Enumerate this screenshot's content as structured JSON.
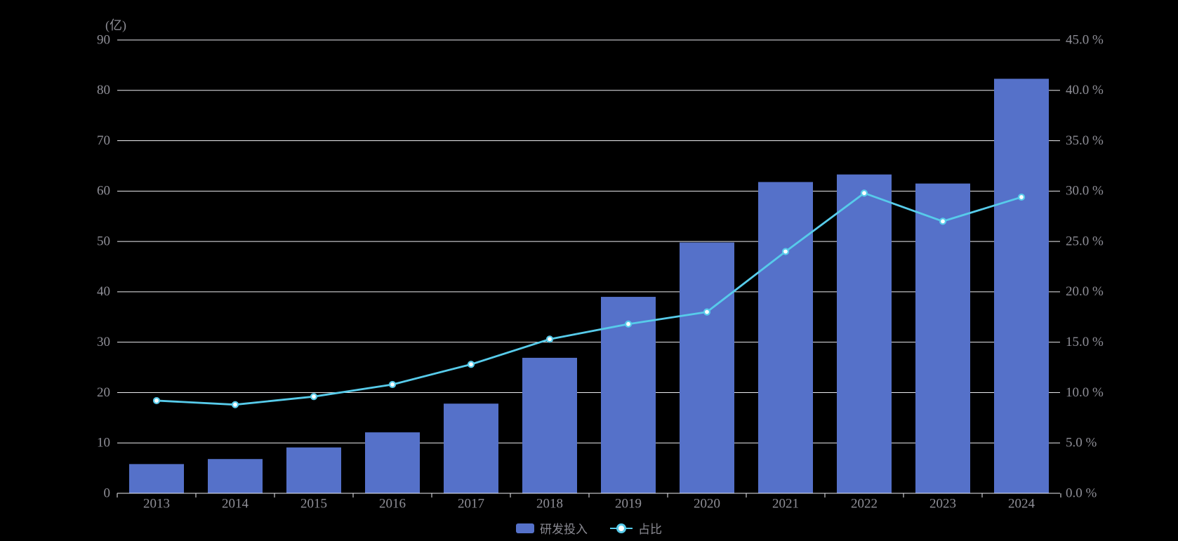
{
  "unit_label": "(亿)",
  "legend": {
    "items": [
      {
        "label": "研发投入",
        "marker": "bar-swatch",
        "color": "#5571C9"
      },
      {
        "label": "占比",
        "marker": "line-dot-swatch",
        "color": "#57CBEA"
      }
    ]
  },
  "chart_data": {
    "type": "bar",
    "subtype": "dual-axis bar + line combo",
    "categories": [
      "2013",
      "2014",
      "2015",
      "2016",
      "2017",
      "2018",
      "2019",
      "2020",
      "2021",
      "2022",
      "2023",
      "2024"
    ],
    "series": [
      {
        "name": "研发投入",
        "type": "bar",
        "axis": "left",
        "unit": "亿",
        "color": "#5571C9",
        "values": [
          5.8,
          6.8,
          9.1,
          12.1,
          17.8,
          26.9,
          39.0,
          49.8,
          61.8,
          63.3,
          61.5,
          82.3
        ]
      },
      {
        "name": "占比",
        "type": "line",
        "axis": "right",
        "unit": "%",
        "color": "#57CBEA",
        "marker": "circle",
        "marker_fill": "#FFFFFF",
        "values": [
          9.2,
          8.8,
          9.6,
          10.8,
          12.8,
          15.3,
          16.8,
          18.0,
          24.0,
          29.8,
          27.0,
          29.4
        ]
      }
    ],
    "left_axis": {
      "title": "(亿)",
      "min": 0,
      "max": 90,
      "step": 10,
      "tick_labels": [
        "0",
        "10",
        "20",
        "30",
        "40",
        "50",
        "60",
        "70",
        "80",
        "90"
      ]
    },
    "right_axis": {
      "min": 0,
      "max": 45,
      "step": 5,
      "tick_labels": [
        "0.0 %",
        "5.0 %",
        "10.0 %",
        "15.0 %",
        "20.0 %",
        "25.0 %",
        "30.0 %",
        "35.0 %",
        "40.0 %",
        "45.0 %"
      ]
    },
    "grid": "horizontal gridlines only",
    "legend_position": "bottom-center",
    "colors": {
      "background": "#000000",
      "grid": "#ECECEF",
      "axis": "#ECECEF",
      "label": "#8E8E96"
    }
  }
}
